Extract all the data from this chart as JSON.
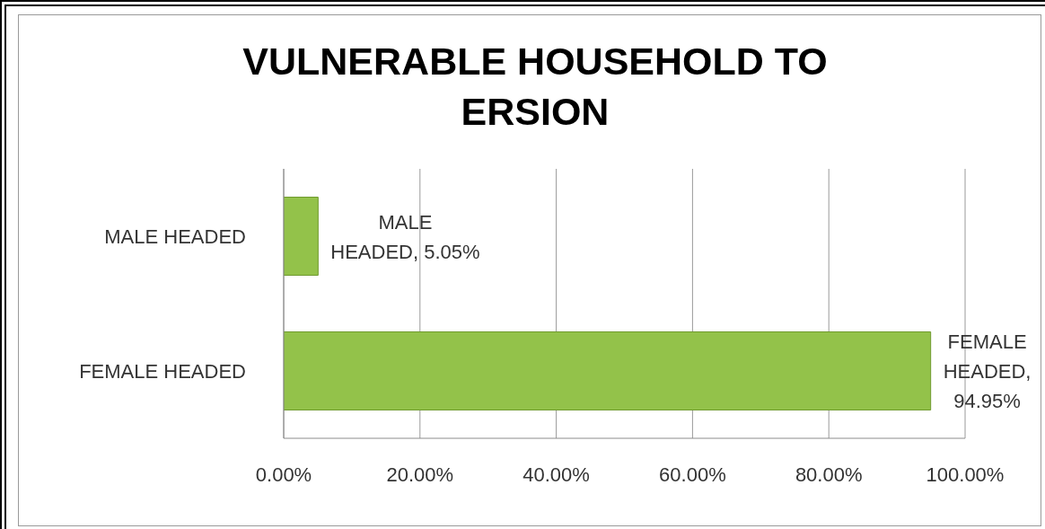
{
  "chart_data": {
    "type": "bar",
    "orientation": "horizontal",
    "title": "VULNERABLE HOUSEHOLD TO ERSION",
    "categories": [
      "MALE HEADED",
      "FEMALE HEADED"
    ],
    "values": [
      5.05,
      94.95
    ],
    "color": "#93c24a",
    "xlim": [
      0,
      100
    ],
    "xticks": [
      {
        "value": 0,
        "label": "0.00%"
      },
      {
        "value": 20,
        "label": "20.00%"
      },
      {
        "value": 40,
        "label": "40.00%"
      },
      {
        "value": 60,
        "label": "60.00%"
      },
      {
        "value": 80,
        "label": "80.00%"
      },
      {
        "value": 100,
        "label": "100.00%"
      }
    ],
    "grid": "x",
    "value_labels": [
      "MALE HEADED, 5.05%",
      "FEMALE HEADED, 94.95%"
    ]
  }
}
